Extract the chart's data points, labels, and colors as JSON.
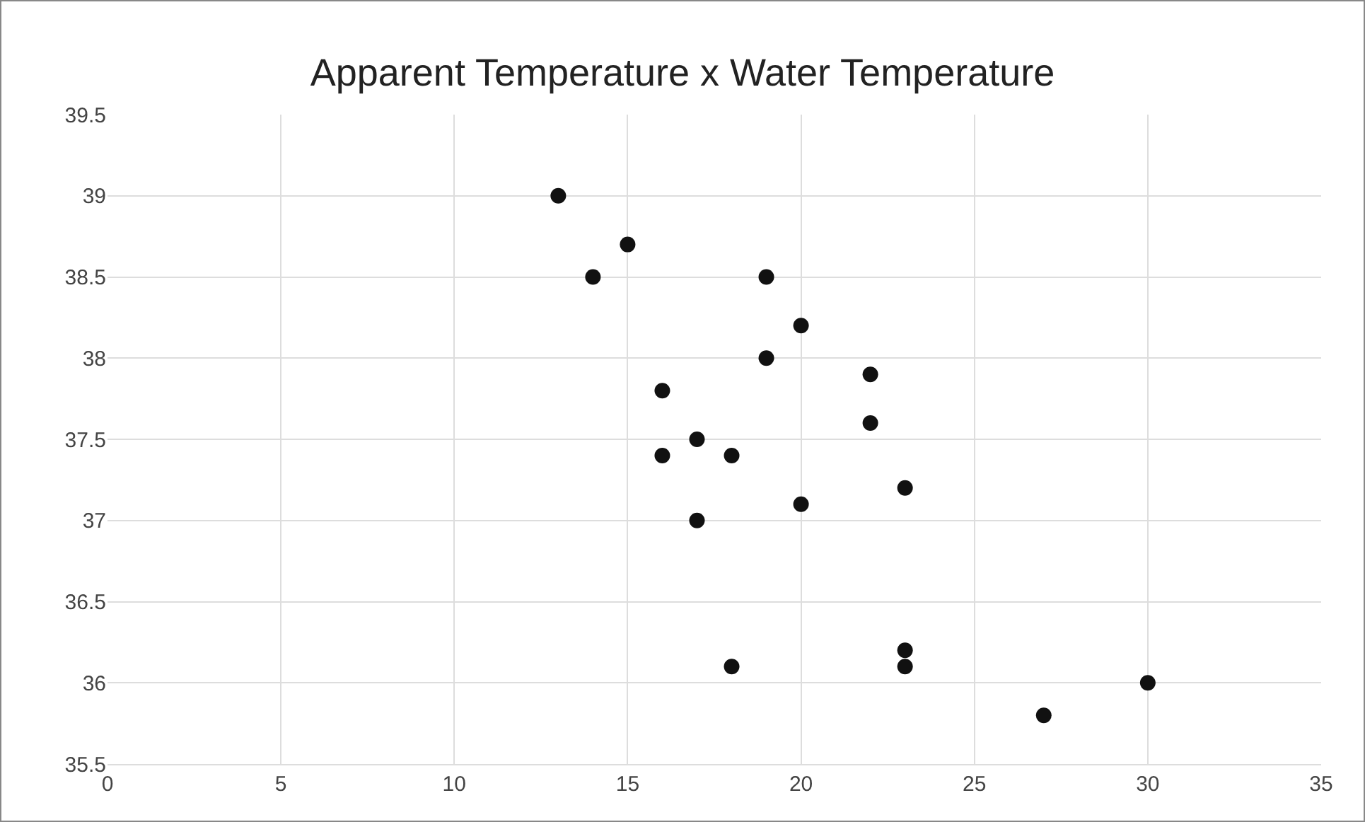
{
  "chart_data": {
    "type": "scatter",
    "title": "Apparent Temperature x Water Temperature",
    "x": [
      13,
      14,
      15,
      19,
      20,
      19,
      22,
      16,
      22,
      16,
      17,
      18,
      23,
      20,
      17,
      18,
      23,
      23,
      27,
      30
    ],
    "values": [
      39,
      38.5,
      38.7,
      38.5,
      38.2,
      38,
      37.9,
      37.8,
      37.6,
      37.4,
      37.5,
      37.4,
      37.2,
      37.1,
      37,
      36.1,
      36.2,
      36.1,
      35.8,
      36
    ],
    "color": "#111111",
    "marker": "circle",
    "xlim": [
      0,
      35
    ],
    "xticks": [
      0,
      5,
      10,
      15,
      20,
      25,
      30,
      35
    ],
    "ylim": [
      35.5,
      39.5
    ],
    "yticks": [
      35.5,
      36,
      36.5,
      37,
      37.5,
      38,
      38.5,
      39,
      39.5
    ],
    "grid": true,
    "legend": false
  }
}
